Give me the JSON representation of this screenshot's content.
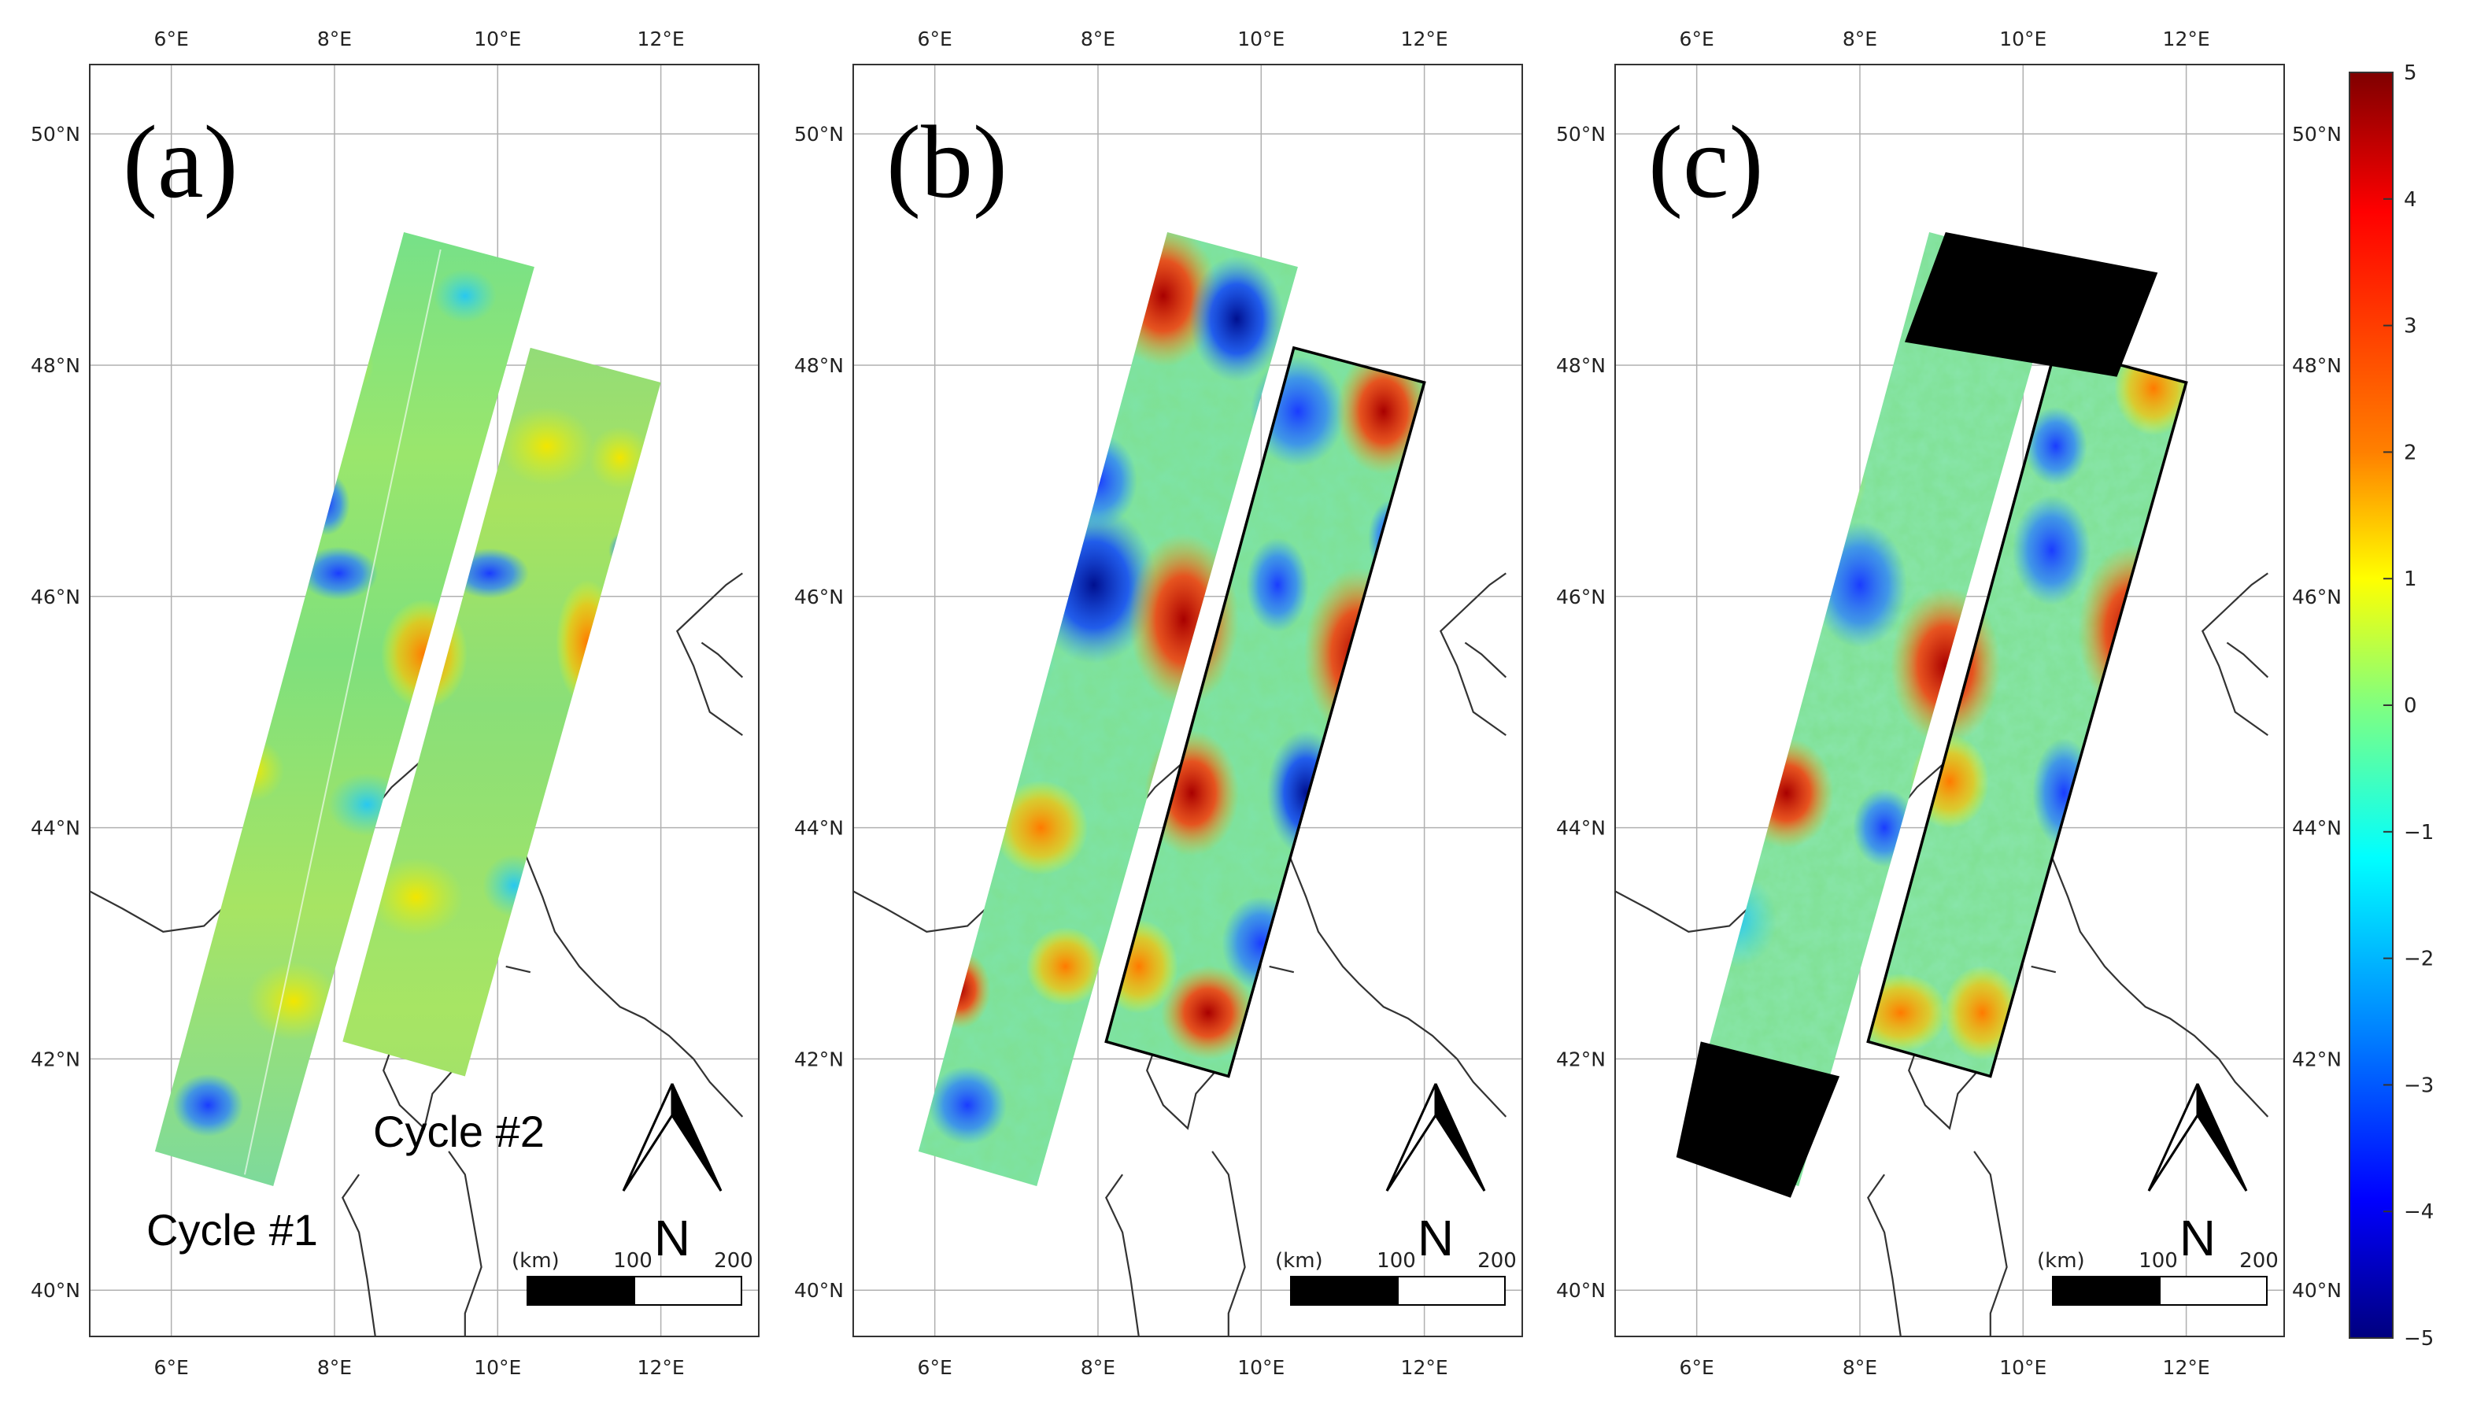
{
  "panels": [
    {
      "letter": "(a)",
      "lon_ticks": [
        "6°E",
        "8°E",
        "10°E",
        "12°E"
      ],
      "lat_ticks_left": [
        "40°N",
        "42°N",
        "44°N",
        "46°N",
        "48°N",
        "50°N"
      ],
      "lat_ticks_right": [],
      "cycle_labels": [
        "Cycle #1",
        "Cycle #2"
      ],
      "scale": {
        "unit": "(km)",
        "mid": "100",
        "max": "200"
      },
      "north": "N"
    },
    {
      "letter": "(b)",
      "lon_ticks": [
        "6°E",
        "8°E",
        "10°E",
        "12°E"
      ],
      "lat_ticks_left": [
        "40°N",
        "42°N",
        "44°N",
        "46°N",
        "48°N",
        "50°N"
      ],
      "lat_ticks_right": [],
      "cycle_labels": [],
      "scale": {
        "unit": "(km)",
        "mid": "100",
        "max": "200"
      },
      "north": "N"
    },
    {
      "letter": "(c)",
      "lon_ticks": [
        "6°E",
        "8°E",
        "10°E",
        "12°E"
      ],
      "lat_ticks_left": [
        "40°N",
        "42°N",
        "44°N",
        "46°N",
        "48°N",
        "50°N"
      ],
      "lat_ticks_right": [
        "40°N",
        "42°N",
        "44°N",
        "46°N",
        "48°N",
        "50°N"
      ],
      "cycle_labels": [],
      "scale": {
        "unit": "(km)",
        "mid": "100",
        "max": "200"
      },
      "north": "N"
    }
  ],
  "colorbar": {
    "ticks": [
      "5",
      "4",
      "3",
      "2",
      "1",
      "0",
      "−1",
      "−2",
      "−3",
      "−4",
      "−5"
    ],
    "colormap": "jet",
    "colors": [
      "#7f0000",
      "#ff0000",
      "#ff8000",
      "#ffff00",
      "#80ff80",
      "#00ffff",
      "#0080ff",
      "#0000ff",
      "#00007f"
    ]
  },
  "map_colors": {
    "swath_smooth_base": "#8fe07a",
    "border_line": "#333333",
    "grid_line": "#b0b0b0",
    "masked_region": "#000000"
  }
}
